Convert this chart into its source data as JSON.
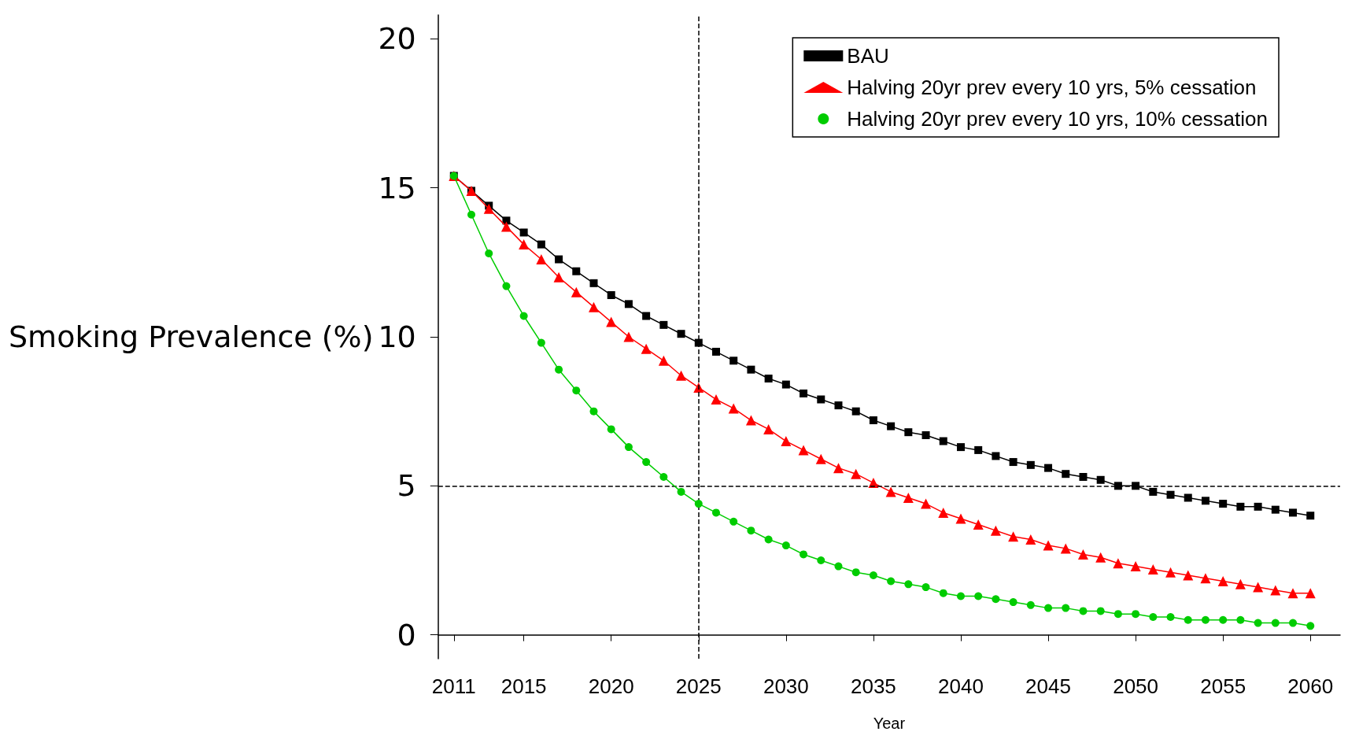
{
  "chart_data": {
    "type": "line",
    "xlabel": "Year",
    "ylabel": "Smoking Prevalence (%)",
    "x": [
      2011,
      2012,
      2013,
      2014,
      2015,
      2016,
      2017,
      2018,
      2019,
      2020,
      2021,
      2022,
      2023,
      2024,
      2025,
      2026,
      2027,
      2028,
      2029,
      2030,
      2031,
      2032,
      2033,
      2034,
      2035,
      2036,
      2037,
      2038,
      2039,
      2040,
      2041,
      2042,
      2043,
      2044,
      2045,
      2046,
      2047,
      2048,
      2049,
      2050,
      2051,
      2052,
      2053,
      2054,
      2055,
      2056,
      2057,
      2058,
      2059,
      2060
    ],
    "series": [
      {
        "name": "BAU",
        "color": "#000000",
        "marker": "square",
        "values": [
          15.4,
          14.9,
          14.4,
          13.9,
          13.5,
          13.1,
          12.6,
          12.2,
          11.8,
          11.4,
          11.1,
          10.7,
          10.4,
          10.1,
          9.8,
          9.5,
          9.2,
          8.9,
          8.6,
          8.4,
          8.1,
          7.9,
          7.7,
          7.5,
          7.2,
          7.0,
          6.8,
          6.7,
          6.5,
          6.3,
          6.2,
          6.0,
          5.8,
          5.7,
          5.6,
          5.4,
          5.3,
          5.2,
          5.0,
          5.0,
          4.8,
          4.7,
          4.6,
          4.5,
          4.4,
          4.3,
          4.3,
          4.2,
          4.1,
          4.0
        ]
      },
      {
        "name": "Halving 20yr prev every 10 yrs, 5% cessation",
        "color": "#ff0000",
        "marker": "triangle",
        "values": [
          15.4,
          14.9,
          14.3,
          13.7,
          13.1,
          12.6,
          12.0,
          11.5,
          11.0,
          10.5,
          10.0,
          9.6,
          9.2,
          8.7,
          8.3,
          7.9,
          7.6,
          7.2,
          6.9,
          6.5,
          6.2,
          5.9,
          5.6,
          5.4,
          5.1,
          4.8,
          4.6,
          4.4,
          4.1,
          3.9,
          3.7,
          3.5,
          3.3,
          3.2,
          3.0,
          2.9,
          2.7,
          2.6,
          2.4,
          2.3,
          2.2,
          2.1,
          2.0,
          1.9,
          1.8,
          1.7,
          1.6,
          1.5,
          1.4,
          1.4
        ]
      },
      {
        "name": "Halving 20yr prev every 10 yrs, 10% cessation",
        "color": "#00cc00",
        "marker": "circle",
        "values": [
          15.4,
          14.1,
          12.8,
          11.7,
          10.7,
          9.8,
          8.9,
          8.2,
          7.5,
          6.9,
          6.3,
          5.8,
          5.3,
          4.8,
          4.4,
          4.1,
          3.8,
          3.5,
          3.2,
          3.0,
          2.7,
          2.5,
          2.3,
          2.1,
          2.0,
          1.8,
          1.7,
          1.6,
          1.4,
          1.3,
          1.3,
          1.2,
          1.1,
          1.0,
          0.9,
          0.9,
          0.8,
          0.8,
          0.7,
          0.7,
          0.6,
          0.6,
          0.5,
          0.5,
          0.5,
          0.5,
          0.4,
          0.4,
          0.4,
          0.3
        ]
      }
    ],
    "xlim": [
      2010.1,
      2061.7
    ],
    "xticks": [
      2011,
      2015,
      2020,
      2025,
      2030,
      2035,
      2040,
      2045,
      2050,
      2055,
      2060
    ],
    "ylim": [
      -0.8,
      20.8
    ],
    "yticks": [
      0,
      5,
      10,
      15,
      20
    ],
    "ref_lines": [
      {
        "axis": "x",
        "value": 2025,
        "line_style": "dashed",
        "color": "#000000"
      },
      {
        "axis": "y",
        "value": 5,
        "line_style": "dashed",
        "color": "#000000"
      }
    ],
    "grid": false,
    "legend": "top right"
  }
}
